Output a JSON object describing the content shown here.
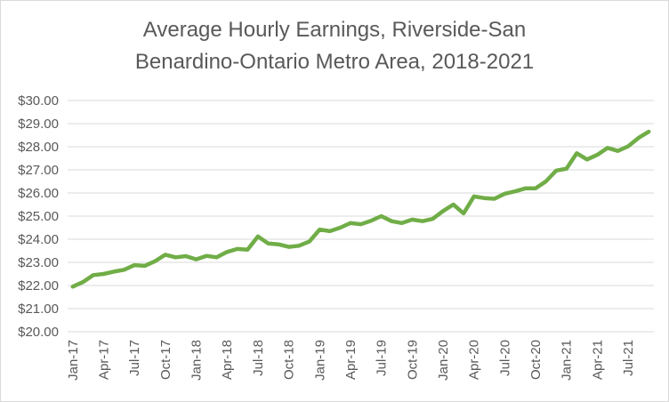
{
  "chart_data": {
    "type": "line",
    "title": [
      "Average Hourly Earnings, Riverside-San",
      "Benardino-Ontario Metro Area, 2018-2021"
    ],
    "xlabel": "",
    "ylabel": "",
    "ylim": [
      20,
      30
    ],
    "yticks": [
      "$20.00",
      "$21.00",
      "$22.00",
      "$23.00",
      "$24.00",
      "$25.00",
      "$26.00",
      "$27.00",
      "$28.00",
      "$29.00",
      "$30.00"
    ],
    "xtick_labels": [
      "Jan-17",
      "Apr-17",
      "Jul-17",
      "Oct-17",
      "Jan-18",
      "Apr-18",
      "Jul-18",
      "Oct-18",
      "Jan-19",
      "Apr-19",
      "Jul-19",
      "Oct-19",
      "Jan-20",
      "Apr-20",
      "Jul-20",
      "Oct-20",
      "Jan-21",
      "Apr-21",
      "Jul-21"
    ],
    "grid": true,
    "legend": "none",
    "color": "#70ad47",
    "x": [
      "Jan-17",
      "Feb-17",
      "Mar-17",
      "Apr-17",
      "May-17",
      "Jun-17",
      "Jul-17",
      "Aug-17",
      "Sep-17",
      "Oct-17",
      "Nov-17",
      "Dec-17",
      "Jan-18",
      "Feb-18",
      "Mar-18",
      "Apr-18",
      "May-18",
      "Jun-18",
      "Jul-18",
      "Aug-18",
      "Sep-18",
      "Oct-18",
      "Nov-18",
      "Dec-18",
      "Jan-19",
      "Feb-19",
      "Mar-19",
      "Apr-19",
      "May-19",
      "Jun-19",
      "Jul-19",
      "Aug-19",
      "Sep-19",
      "Oct-19",
      "Nov-19",
      "Dec-19",
      "Jan-20",
      "Feb-20",
      "Mar-20",
      "Apr-20",
      "May-20",
      "Jun-20",
      "Jul-20",
      "Aug-20",
      "Sep-20",
      "Oct-20",
      "Nov-20",
      "Dec-20",
      "Jan-21",
      "Feb-21",
      "Mar-21",
      "Apr-21",
      "May-21",
      "Jun-21",
      "Jul-21",
      "Aug-21",
      "Sep-21"
    ],
    "values": [
      21.95,
      22.15,
      22.45,
      22.5,
      22.6,
      22.68,
      22.88,
      22.85,
      23.05,
      23.33,
      23.22,
      23.27,
      23.13,
      23.28,
      23.22,
      23.45,
      23.58,
      23.55,
      24.12,
      23.82,
      23.78,
      23.67,
      23.72,
      23.9,
      24.42,
      24.35,
      24.5,
      24.7,
      24.65,
      24.8,
      25.0,
      24.78,
      24.7,
      24.85,
      24.78,
      24.88,
      25.22,
      25.5,
      25.12,
      25.85,
      25.78,
      25.75,
      25.97,
      26.07,
      26.2,
      26.2,
      26.5,
      26.97,
      27.05,
      27.72,
      27.45,
      27.65,
      27.95,
      27.82,
      28.02,
      28.38,
      28.65
    ]
  }
}
